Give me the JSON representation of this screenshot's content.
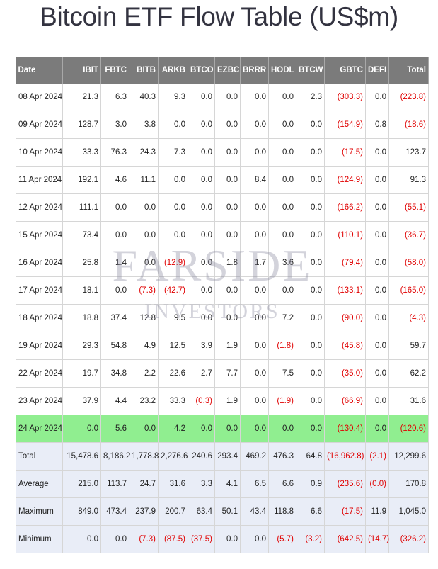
{
  "page": {
    "title": "Bitcoin ETF Flow Table (US$m)",
    "watermark_top": "FARSIDE",
    "watermark_bottom": "INVESTORS"
  },
  "table": {
    "columns": [
      "Date",
      "IBIT",
      "FBTC",
      "BITB",
      "ARKB",
      "BTCO",
      "EZBC",
      "BRRR",
      "HODL",
      "BTCW",
      "GBTC",
      "DEFI",
      "Total"
    ],
    "rows": [
      {
        "cells": [
          "08 Apr 2024",
          "21.3",
          "6.3",
          "40.3",
          "9.3",
          "0.0",
          "0.0",
          "0.0",
          "0.0",
          "2.3",
          "(303.3)",
          "0.0",
          "(223.8)"
        ]
      },
      {
        "cells": [
          "09 Apr 2024",
          "128.7",
          "3.0",
          "3.8",
          "0.0",
          "0.0",
          "0.0",
          "0.0",
          "0.0",
          "0.0",
          "(154.9)",
          "0.8",
          "(18.6)"
        ]
      },
      {
        "cells": [
          "10 Apr 2024",
          "33.3",
          "76.3",
          "24.3",
          "7.3",
          "0.0",
          "0.0",
          "0.0",
          "0.0",
          "0.0",
          "(17.5)",
          "0.0",
          "123.7"
        ]
      },
      {
        "cells": [
          "11 Apr 2024",
          "192.1",
          "4.6",
          "11.1",
          "0.0",
          "0.0",
          "0.0",
          "8.4",
          "0.0",
          "0.0",
          "(124.9)",
          "0.0",
          "91.3"
        ]
      },
      {
        "cells": [
          "12 Apr 2024",
          "111.1",
          "0.0",
          "0.0",
          "0.0",
          "0.0",
          "0.0",
          "0.0",
          "0.0",
          "0.0",
          "(166.2)",
          "0.0",
          "(55.1)"
        ]
      },
      {
        "cells": [
          "15 Apr 2024",
          "73.4",
          "0.0",
          "0.0",
          "0.0",
          "0.0",
          "0.0",
          "0.0",
          "0.0",
          "0.0",
          "(110.1)",
          "0.0",
          "(36.7)"
        ]
      },
      {
        "cells": [
          "16 Apr 2024",
          "25.8",
          "1.4",
          "0.0",
          "(12.9)",
          "0.0",
          "1.8",
          "1.7",
          "3.6",
          "0.0",
          "(79.4)",
          "0.0",
          "(58.0)"
        ]
      },
      {
        "cells": [
          "17 Apr 2024",
          "18.1",
          "0.0",
          "(7.3)",
          "(42.7)",
          "0.0",
          "0.0",
          "0.0",
          "0.0",
          "0.0",
          "(133.1)",
          "0.0",
          "(165.0)"
        ]
      },
      {
        "cells": [
          "18 Apr 2024",
          "18.8",
          "37.4",
          "12.8",
          "9.5",
          "0.0",
          "0.0",
          "0.0",
          "7.2",
          "0.0",
          "(90.0)",
          "0.0",
          "(4.3)"
        ]
      },
      {
        "cells": [
          "19 Apr 2024",
          "29.3",
          "54.8",
          "4.9",
          "12.5",
          "3.9",
          "1.9",
          "0.0",
          "(1.8)",
          "0.0",
          "(45.8)",
          "0.0",
          "59.7"
        ]
      },
      {
        "cells": [
          "22 Apr 2024",
          "19.7",
          "34.8",
          "2.2",
          "22.6",
          "2.7",
          "7.7",
          "0.0",
          "7.5",
          "0.0",
          "(35.0)",
          "0.0",
          "62.2"
        ]
      },
      {
        "cells": [
          "23 Apr 2024",
          "37.9",
          "4.4",
          "23.2",
          "33.3",
          "(0.3)",
          "1.9",
          "0.0",
          "(1.9)",
          "0.0",
          "(66.9)",
          "0.0",
          "31.6"
        ]
      },
      {
        "cells": [
          "24 Apr 2024",
          "0.0",
          "5.6",
          "0.0",
          "4.2",
          "0.0",
          "0.0",
          "0.0",
          "0.0",
          "0.0",
          "(130.4)",
          "0.0",
          "(120.6)"
        ],
        "highlight": true
      }
    ],
    "summary": [
      {
        "cells": [
          "Total",
          "15,478.6",
          "8,186.2",
          "1,778.8",
          "2,276.6",
          "240.6",
          "293.4",
          "469.2",
          "476.3",
          "64.8",
          "(16,962.8)",
          "(2.1)",
          "12,299.6"
        ]
      },
      {
        "cells": [
          "Average",
          "215.0",
          "113.7",
          "24.7",
          "31.6",
          "3.3",
          "4.1",
          "6.5",
          "6.6",
          "0.9",
          "(235.6)",
          "(0.0)",
          "170.8"
        ]
      },
      {
        "cells": [
          "Maximum",
          "849.0",
          "473.4",
          "237.9",
          "200.7",
          "63.4",
          "50.1",
          "43.4",
          "118.8",
          "6.6",
          "(17.5)",
          "11.9",
          "1,045.0"
        ]
      },
      {
        "cells": [
          "Minimum",
          "0.0",
          "0.0",
          "(7.3)",
          "(87.5)",
          "(37.5)",
          "0.0",
          "0.0",
          "(5.7)",
          "(3.2)",
          "(642.5)",
          "(14.7)",
          "(326.2)"
        ]
      }
    ]
  }
}
